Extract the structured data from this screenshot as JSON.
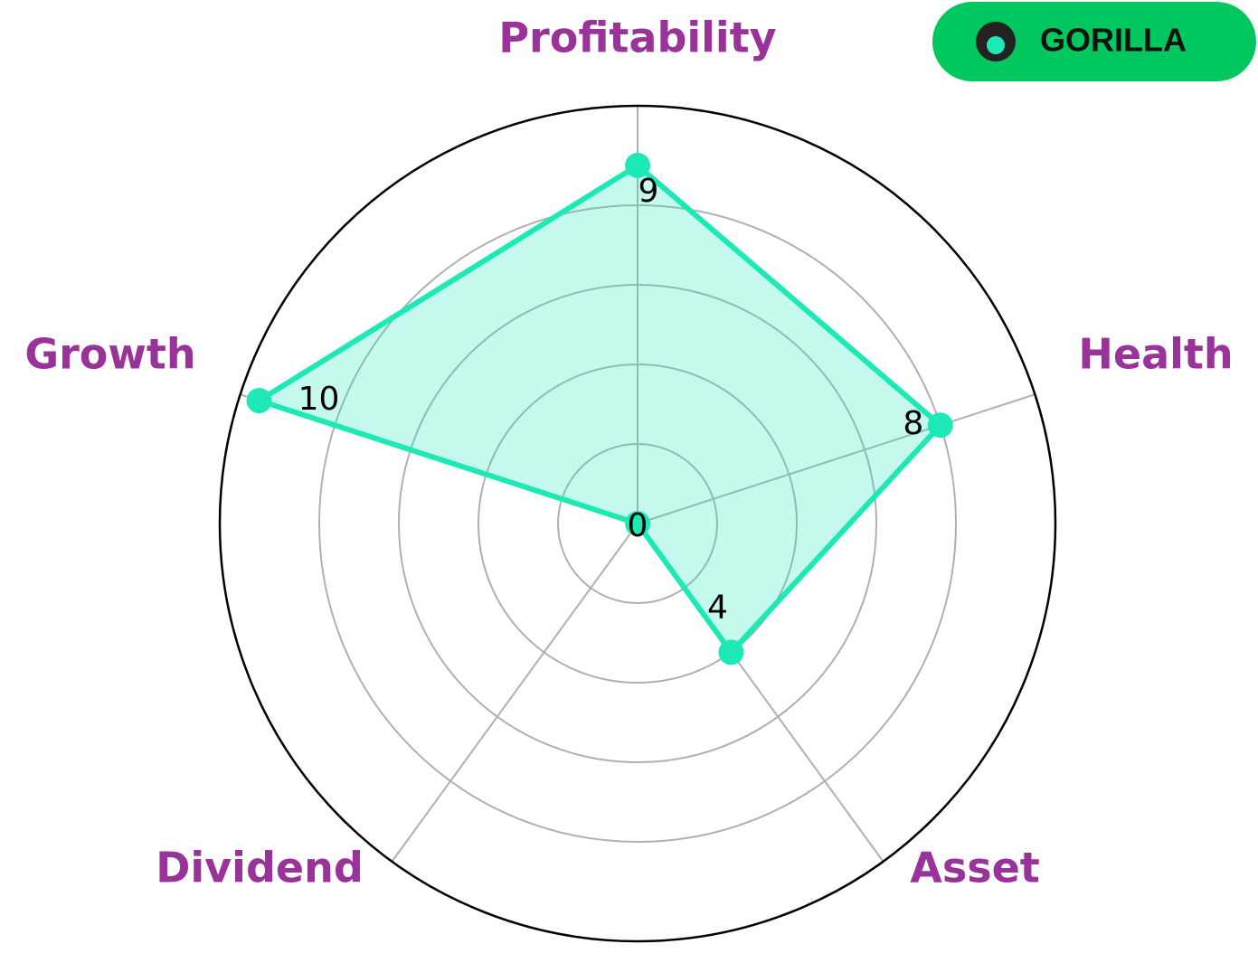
{
  "logo": "GORILLA",
  "chart_data": {
    "type": "radar",
    "categories": [
      "Profitability",
      "Health",
      "Asset",
      "Dividend",
      "Growth"
    ],
    "values": [
      9,
      8,
      4,
      0,
      10
    ],
    "color": "#1de9b6",
    "rlim": [
      0,
      10.5
    ],
    "rticks": [
      2,
      4,
      6,
      8
    ],
    "grid": true
  }
}
